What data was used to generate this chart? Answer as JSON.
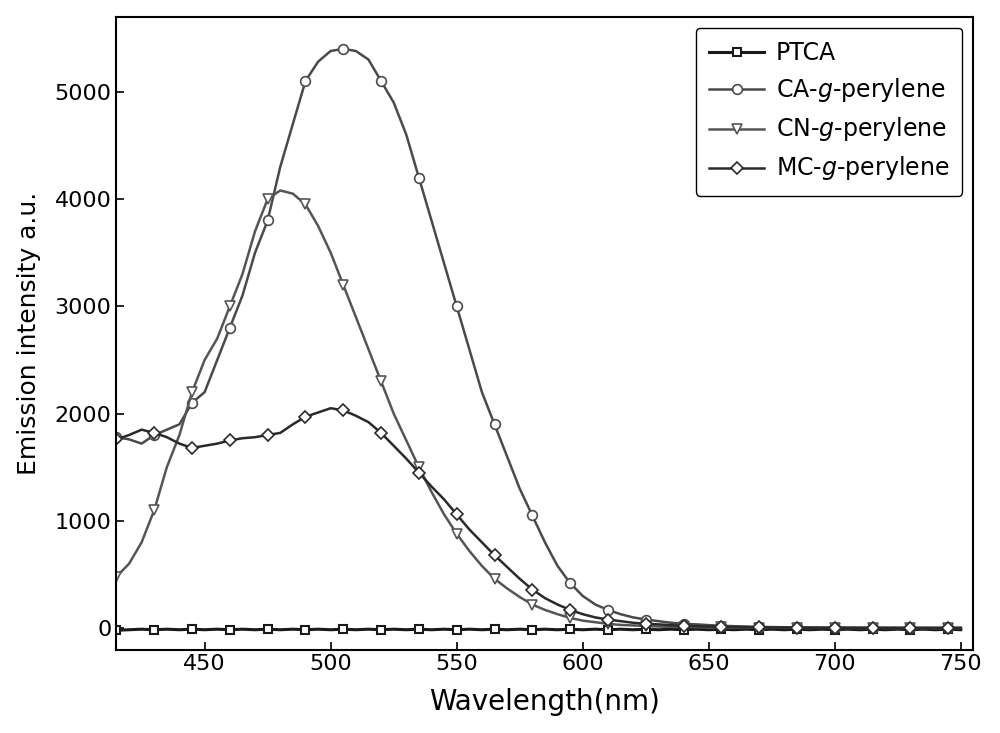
{
  "title": "",
  "xlabel": "Wavelength(nm)",
  "ylabel": "Emission intensity a.u.",
  "xlim": [
    415,
    755
  ],
  "ylim": [
    -200,
    5700
  ],
  "yticks": [
    0,
    1000,
    2000,
    3000,
    4000,
    5000
  ],
  "xticks": [
    450,
    500,
    550,
    600,
    650,
    700,
    750
  ],
  "series": {
    "PTCA": {
      "color": "#1a1a1a",
      "linewidth": 2.2,
      "marker": "s",
      "markersize": 6,
      "markerfacecolor": "white",
      "markeredgecolor": "#1a1a1a",
      "linestyle": "-",
      "x": [
        415,
        420,
        425,
        430,
        435,
        440,
        445,
        450,
        455,
        460,
        465,
        470,
        475,
        480,
        485,
        490,
        495,
        500,
        505,
        510,
        515,
        520,
        525,
        530,
        535,
        540,
        545,
        550,
        555,
        560,
        565,
        570,
        575,
        580,
        585,
        590,
        595,
        600,
        605,
        610,
        615,
        620,
        625,
        630,
        635,
        640,
        645,
        650,
        655,
        660,
        665,
        670,
        675,
        680,
        685,
        690,
        695,
        700,
        705,
        710,
        715,
        720,
        725,
        730,
        735,
        740,
        745,
        750
      ],
      "y": [
        -20,
        -15,
        -10,
        -15,
        -10,
        -15,
        -10,
        -15,
        -10,
        -15,
        -10,
        -15,
        -10,
        -15,
        -10,
        -15,
        -10,
        -15,
        -10,
        -15,
        -10,
        -15,
        -10,
        -15,
        -10,
        -15,
        -10,
        -15,
        -10,
        -15,
        -10,
        -15,
        -10,
        -15,
        -10,
        -15,
        -10,
        -15,
        -10,
        -15,
        -10,
        -15,
        -10,
        -15,
        -10,
        -15,
        -10,
        -15,
        -10,
        -15,
        -10,
        -15,
        -10,
        -15,
        -10,
        -15,
        -10,
        -15,
        -10,
        -15,
        -10,
        -15,
        -10,
        -15,
        -10,
        -15,
        -10,
        -15
      ]
    },
    "CA_g_perylene": {
      "color": "#4a4a4a",
      "linewidth": 1.8,
      "marker": "o",
      "markersize": 7,
      "markerfacecolor": "white",
      "markeredgecolor": "#4a4a4a",
      "linestyle": "-",
      "x": [
        415,
        420,
        425,
        430,
        435,
        440,
        445,
        450,
        455,
        460,
        465,
        470,
        475,
        480,
        485,
        490,
        495,
        500,
        505,
        510,
        515,
        520,
        525,
        530,
        535,
        540,
        545,
        550,
        555,
        560,
        565,
        570,
        575,
        580,
        585,
        590,
        595,
        600,
        605,
        610,
        615,
        620,
        625,
        630,
        635,
        640,
        645,
        650,
        655,
        660,
        665,
        670,
        675,
        680,
        685,
        690,
        695,
        700,
        705,
        710,
        715,
        720,
        725,
        730,
        735,
        740,
        745,
        750
      ],
      "y": [
        1780,
        1760,
        1720,
        1800,
        1850,
        1900,
        2100,
        2200,
        2500,
        2800,
        3100,
        3500,
        3800,
        4300,
        4700,
        5100,
        5280,
        5380,
        5400,
        5380,
        5300,
        5100,
        4900,
        4600,
        4200,
        3800,
        3400,
        3000,
        2600,
        2200,
        1900,
        1600,
        1300,
        1050,
        800,
        580,
        420,
        300,
        220,
        170,
        130,
        100,
        80,
        65,
        50,
        40,
        35,
        28,
        22,
        18,
        15,
        12,
        10,
        8,
        7,
        6,
        5,
        4,
        4,
        3,
        3,
        3,
        3,
        2,
        2,
        2,
        2,
        2
      ]
    },
    "CN_g_perylene": {
      "color": "#555555",
      "linewidth": 1.8,
      "marker": "v",
      "markersize": 7,
      "markerfacecolor": "white",
      "markeredgecolor": "#555555",
      "linestyle": "-",
      "x": [
        415,
        420,
        425,
        430,
        435,
        440,
        445,
        450,
        455,
        460,
        465,
        470,
        475,
        480,
        485,
        490,
        495,
        500,
        505,
        510,
        515,
        520,
        525,
        530,
        535,
        540,
        545,
        550,
        555,
        560,
        565,
        570,
        575,
        580,
        585,
        590,
        595,
        600,
        605,
        610,
        615,
        620,
        625,
        630,
        635,
        640,
        645,
        650,
        655,
        660,
        665,
        670,
        675,
        680,
        685,
        690,
        695,
        700,
        705,
        710,
        715,
        720,
        725,
        730,
        735,
        740,
        745,
        750
      ],
      "y": [
        480,
        600,
        800,
        1100,
        1500,
        1800,
        2200,
        2500,
        2700,
        3000,
        3300,
        3700,
        4000,
        4080,
        4050,
        3950,
        3750,
        3500,
        3200,
        2900,
        2600,
        2300,
        2000,
        1750,
        1500,
        1270,
        1060,
        880,
        720,
        580,
        460,
        370,
        290,
        220,
        170,
        130,
        95,
        70,
        55,
        40,
        30,
        25,
        20,
        15,
        12,
        10,
        8,
        7,
        6,
        5,
        4,
        3,
        3,
        2,
        2,
        2,
        2,
        2,
        1,
        1,
        1,
        1,
        1,
        1,
        1,
        1,
        1,
        1
      ]
    },
    "MC_g_perylene": {
      "color": "#2a2a2a",
      "linewidth": 1.8,
      "marker": "D",
      "markersize": 6,
      "markerfacecolor": "white",
      "markeredgecolor": "#2a2a2a",
      "linestyle": "-",
      "x": [
        415,
        420,
        425,
        430,
        435,
        440,
        445,
        450,
        455,
        460,
        465,
        470,
        475,
        480,
        485,
        490,
        495,
        500,
        505,
        510,
        515,
        520,
        525,
        530,
        535,
        540,
        545,
        550,
        555,
        560,
        565,
        570,
        575,
        580,
        585,
        590,
        595,
        600,
        605,
        610,
        615,
        620,
        625,
        630,
        635,
        640,
        645,
        650,
        655,
        660,
        665,
        670,
        675,
        680,
        685,
        690,
        695,
        700,
        705,
        710,
        715,
        720,
        725,
        730,
        735,
        740,
        745,
        750
      ],
      "y": [
        1760,
        1800,
        1850,
        1820,
        1780,
        1720,
        1680,
        1700,
        1720,
        1750,
        1770,
        1780,
        1800,
        1820,
        1900,
        1970,
        2010,
        2050,
        2030,
        1980,
        1920,
        1820,
        1700,
        1580,
        1450,
        1320,
        1200,
        1060,
        920,
        800,
        680,
        570,
        460,
        360,
        280,
        220,
        170,
        130,
        100,
        80,
        65,
        50,
        40,
        35,
        28,
        22,
        18,
        15,
        12,
        10,
        8,
        7,
        5,
        5,
        4,
        4,
        3,
        3,
        3,
        3,
        2,
        2,
        2,
        2,
        2,
        2,
        2,
        2
      ]
    }
  },
  "legend_labels": [
    "PTCA",
    "CA-$g$-perylene",
    "CN-$g$-perylene",
    "MC-$g$-perylene"
  ],
  "legend_loc": "upper right",
  "background_color": "#ffffff",
  "marker_every_PTCA": 3,
  "marker_every_CA": 3,
  "marker_every_CN": 3,
  "marker_every_MC": 3
}
